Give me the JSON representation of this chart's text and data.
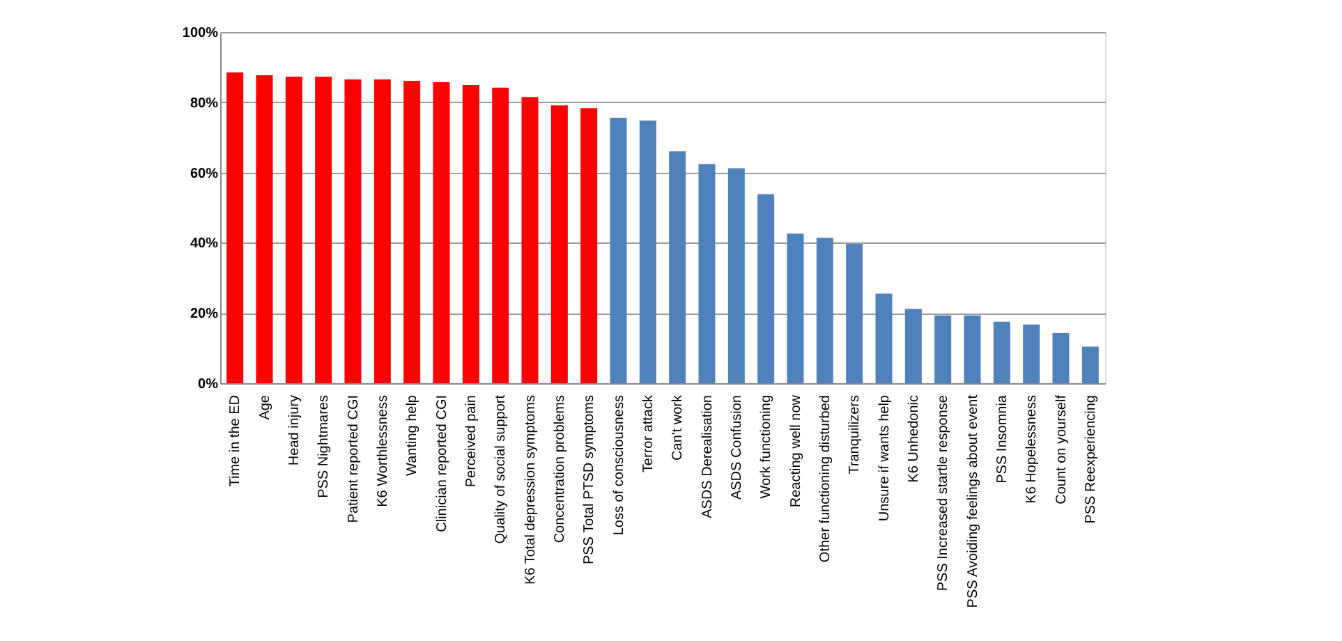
{
  "chart_data": {
    "type": "bar",
    "categories": [
      "Time in the ED",
      "Age",
      "Head injury",
      "PSS Nightmares",
      "Patient reported CGI",
      "K6 Worthlessness",
      "Wanting help",
      "Clinician reported CGI",
      "Perceived pain",
      "Quality of social support",
      "K6 Total depression symptoms",
      "Concentration problems",
      "PSS Total PTSD symptoms",
      "Loss of consciousness",
      "Terror attack",
      "Can't work",
      "ASDS Derealisation",
      "ASDS Confusion",
      "Work functioning",
      "Reacting well now",
      "Other functioning disturbed",
      "Tranquilizers",
      "Unsure if wants help",
      "K6 Unhedonic",
      "PSS Increased startle response",
      "PSS Avoiding feelings about event",
      "PSS Insomnia",
      "K6 Hopelessness",
      "Count on yourself",
      "PSS Reexperiencing"
    ],
    "values": [
      88.5,
      87.7,
      87.3,
      87.3,
      86.5,
      86.5,
      86.1,
      85.7,
      84.9,
      84.2,
      81.5,
      79.1,
      78.3,
      75.6,
      74.8,
      66.0,
      62.4,
      61.2,
      53.8,
      42.6,
      41.4,
      39.7,
      25.5,
      21.2,
      19.3,
      19.3,
      17.5,
      16.7,
      14.3,
      10.4
    ],
    "colors": [
      "#ff0000",
      "#ff0000",
      "#ff0000",
      "#ff0000",
      "#ff0000",
      "#ff0000",
      "#ff0000",
      "#ff0000",
      "#ff0000",
      "#ff0000",
      "#ff0000",
      "#ff0000",
      "#ff0000",
      "#4f81bd",
      "#4f81bd",
      "#4f81bd",
      "#4f81bd",
      "#4f81bd",
      "#4f81bd",
      "#4f81bd",
      "#4f81bd",
      "#4f81bd",
      "#4f81bd",
      "#4f81bd",
      "#4f81bd",
      "#4f81bd",
      "#4f81bd",
      "#4f81bd",
      "#4f81bd",
      "#4f81bd"
    ],
    "ylim": [
      0,
      100
    ],
    "yticks": [
      {
        "value": 0,
        "label": "0%"
      },
      {
        "value": 20,
        "label": "20%"
      },
      {
        "value": 40,
        "label": "40%"
      },
      {
        "value": 60,
        "label": "60%"
      },
      {
        "value": 80,
        "label": "80%"
      },
      {
        "value": 100,
        "label": "100%"
      }
    ],
    "grid": "y"
  }
}
